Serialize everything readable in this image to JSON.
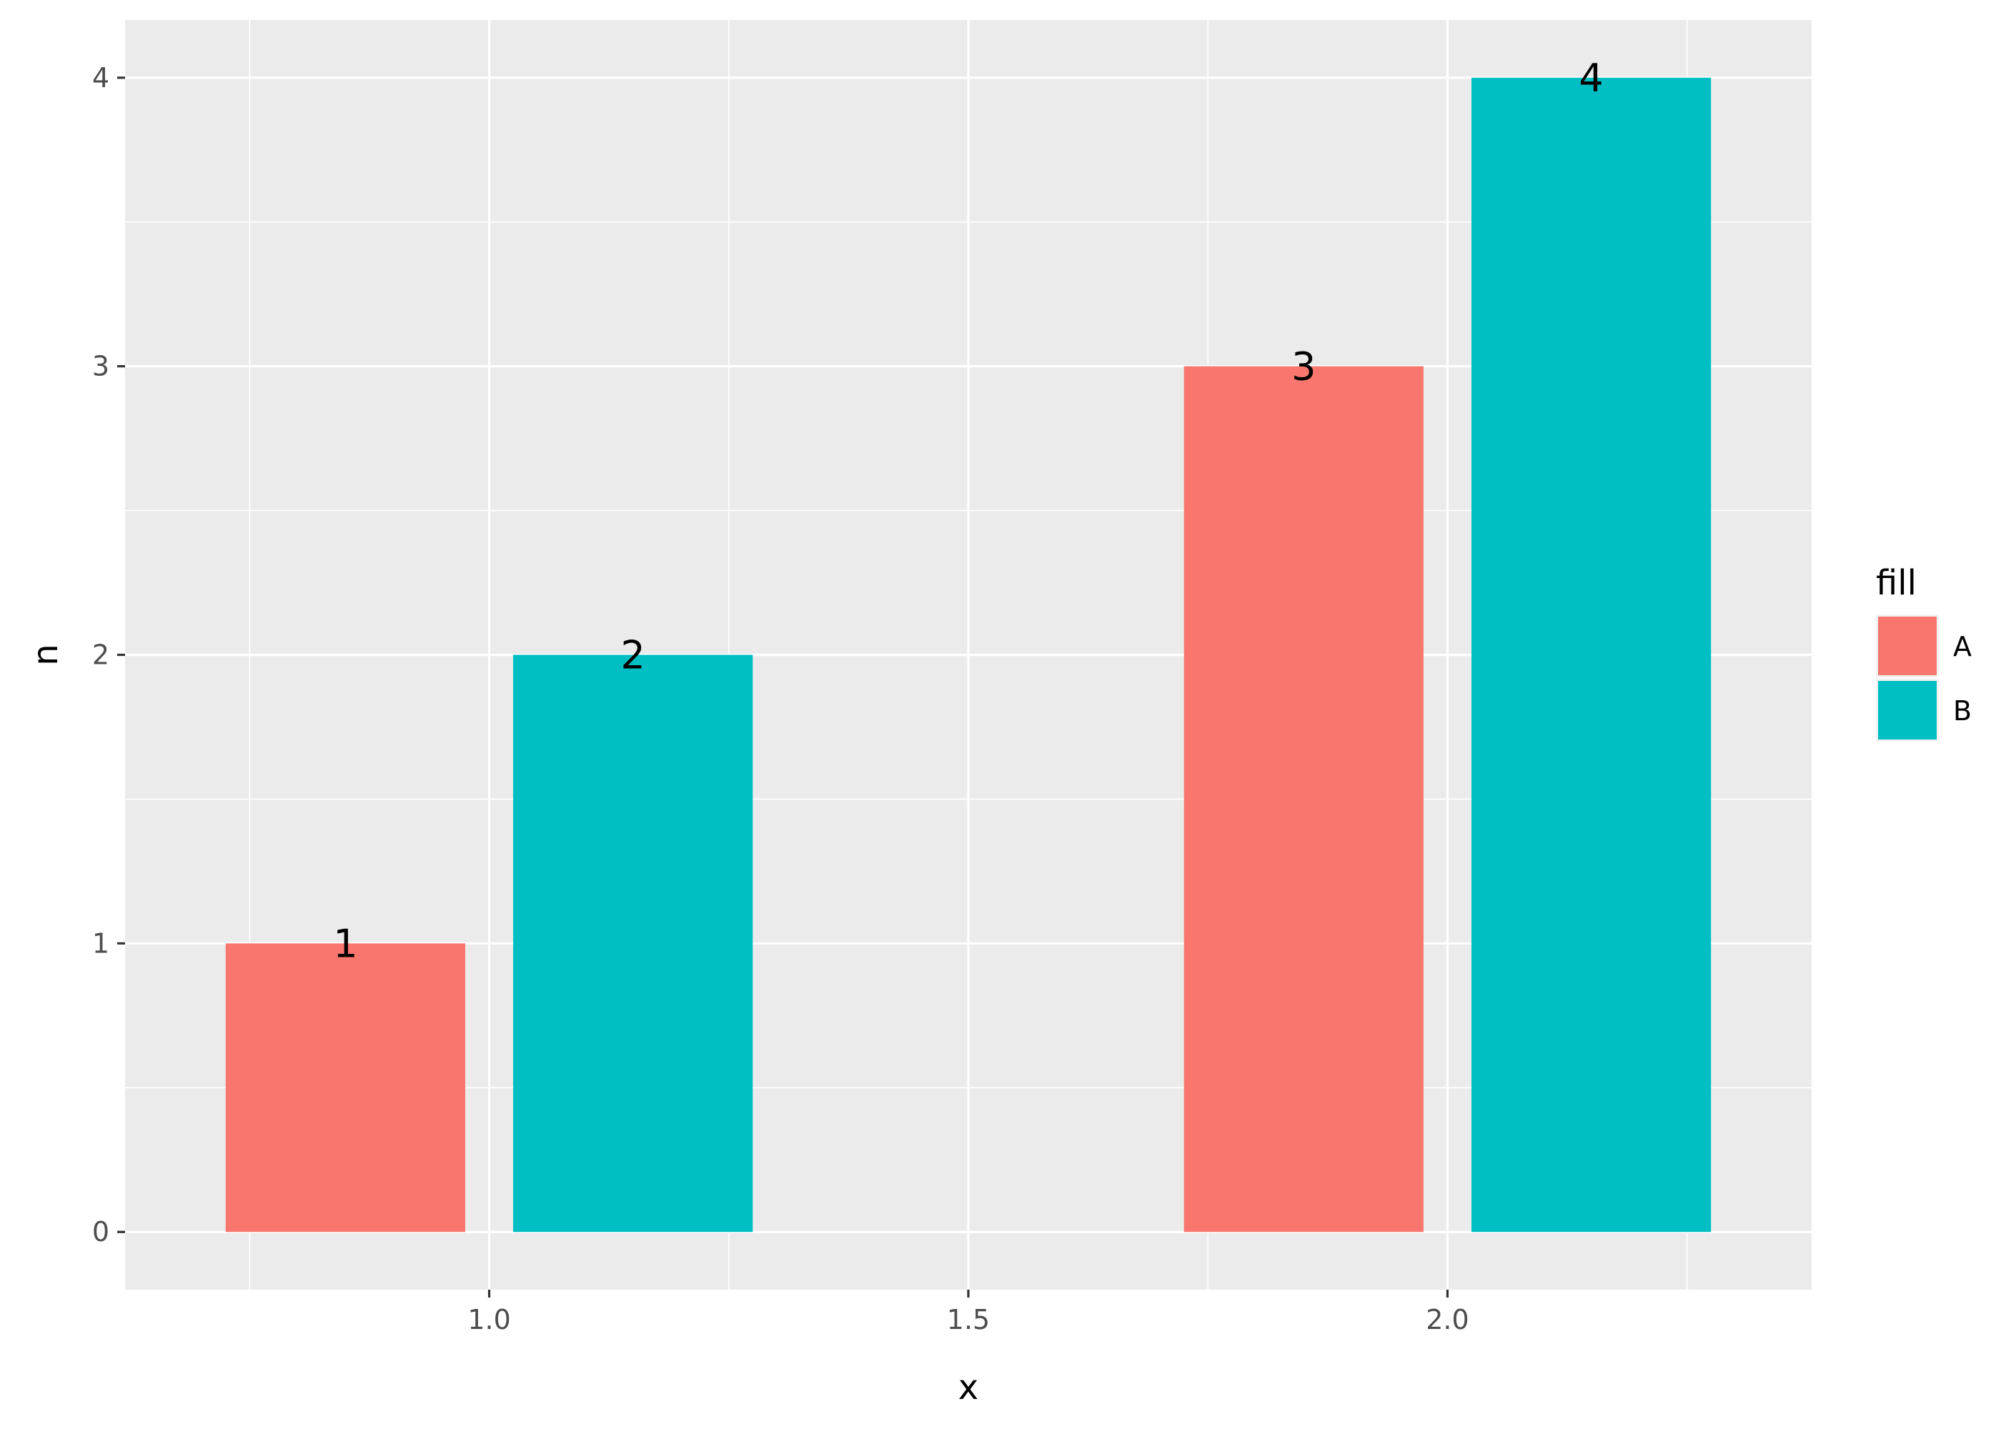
{
  "chart_data": {
    "type": "bar",
    "xlabel": "x",
    "ylabel": "n",
    "xlim": [
      0.62,
      2.38
    ],
    "ylim": [
      -0.2,
      4.2
    ],
    "x_ticks": [
      1.0,
      1.5,
      2.0
    ],
    "x_tick_labels": [
      "1.0",
      "1.5",
      "2.0"
    ],
    "y_ticks": [
      0,
      1,
      2,
      3,
      4
    ],
    "y_tick_labels": [
      "0",
      "1",
      "2",
      "3",
      "4"
    ],
    "grid": true,
    "legend": {
      "title": "fill",
      "placement": "right"
    },
    "bar_width": 0.25,
    "series": [
      {
        "name": "A",
        "color": "#F8766D",
        "x": [
          0.85,
          1.85
        ],
        "values": [
          1,
          3
        ]
      },
      {
        "name": "B",
        "color": "#00BFC4",
        "x": [
          1.15,
          2.15
        ],
        "values": [
          2,
          4
        ]
      }
    ],
    "data_labels": [
      "1",
      "2",
      "3",
      "4"
    ]
  }
}
